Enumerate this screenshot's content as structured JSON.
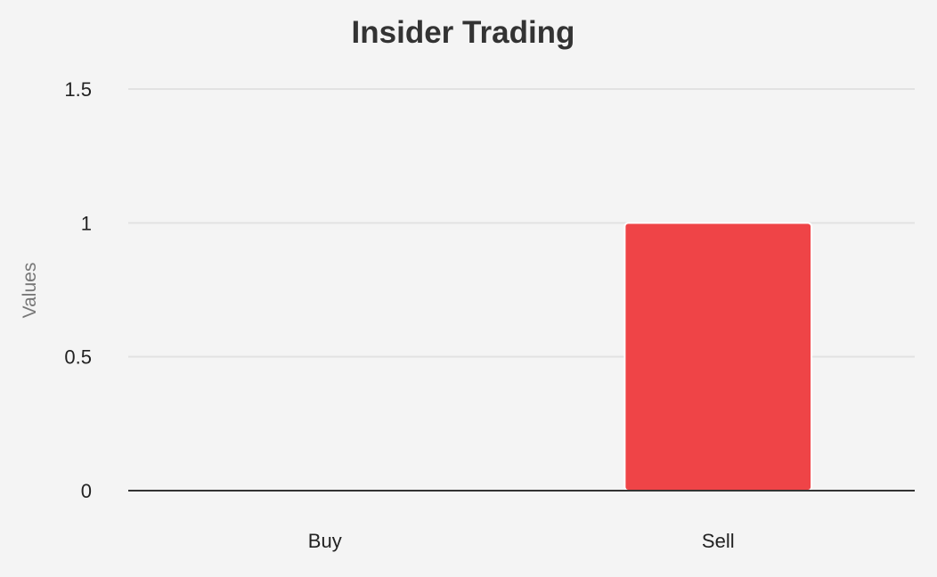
{
  "chart_data": {
    "type": "bar",
    "title": "Insider Trading",
    "xlabel": "",
    "ylabel": "Values",
    "categories": [
      "Buy",
      "Sell"
    ],
    "values": [
      0,
      1
    ],
    "ylim": [
      0,
      1.5
    ],
    "yticks": [
      0,
      0.5,
      1,
      1.5
    ],
    "ytick_labels": [
      "0",
      "0.5",
      "1",
      "1.5"
    ],
    "bar_color": "#ef4447",
    "grid": true,
    "legend": "none"
  }
}
